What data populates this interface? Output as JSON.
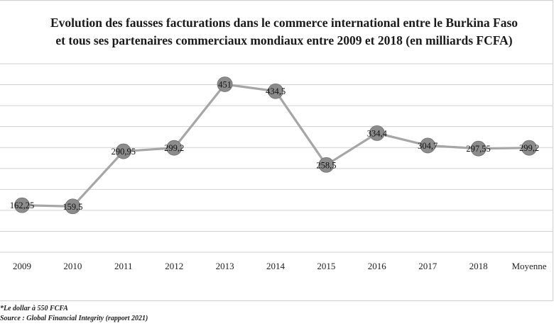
{
  "chart_data": {
    "type": "line",
    "title_lines": [
      "Evolution des fausses facturations dans le commerce international entre le Burkina Faso",
      "et tous ses partenaires commerciaux mondiaux entre 2009 et 2018 (en milliards FCFA)"
    ],
    "categories": [
      "2009",
      "2010",
      "2011",
      "2012",
      "2013",
      "2014",
      "2015",
      "2016",
      "2017",
      "2018",
      "Moyenne"
    ],
    "values": [
      162.25,
      159.5,
      290.95,
      299.2,
      451,
      434.5,
      258.5,
      334.4,
      304.7,
      297.55,
      299.2
    ],
    "data_labels": [
      "162,25",
      "159,5",
      "290,95",
      "299,2",
      "451",
      "434,5",
      "258,5",
      "334,4",
      "304,7",
      "297,55",
      "299,2"
    ],
    "xlabel": "",
    "ylabel": "",
    "ylim": [
      50,
      500
    ],
    "grid": true,
    "y_axis_labels_visible": false,
    "legend": "none",
    "colors": {
      "line": "#a6a6a6",
      "marker": "#8c8c8c",
      "marker_stroke": "#6f6f6f",
      "grid": "#d0d0d0"
    }
  },
  "footnotes": [
    "*Le dollar à 550 FCFA",
    "Source : Global Financial Integrity (rapport 2021)"
  ]
}
